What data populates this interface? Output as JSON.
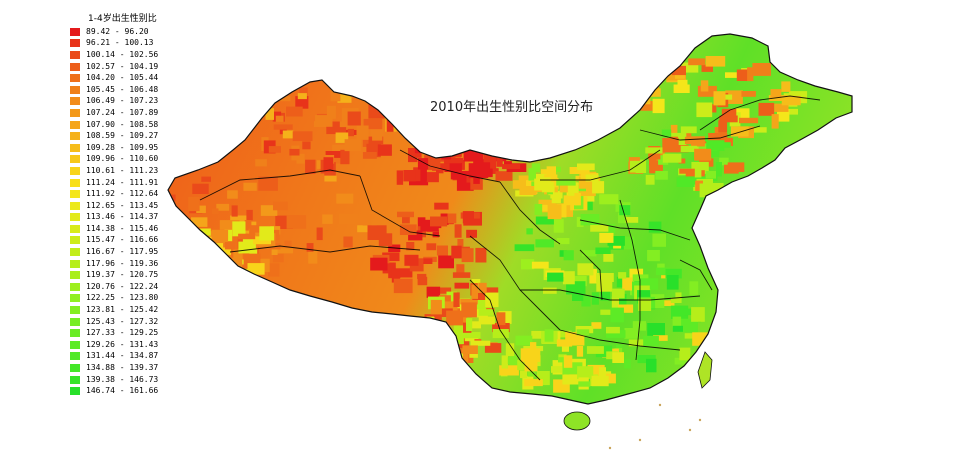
{
  "map": {
    "title": "2010年出生性别比空间分布",
    "legend_title": "1-4岁出生性别比",
    "legend": [
      {
        "label": "89.42 - 96.20",
        "color": "#e41a1c"
      },
      {
        "label": "96.21 - 100.13",
        "color": "#e8331a"
      },
      {
        "label": "100.14 - 102.56",
        "color": "#ea4a1a"
      },
      {
        "label": "102.57 - 104.19",
        "color": "#ed5e1a"
      },
      {
        "label": "104.20 - 105.44",
        "color": "#ef701a"
      },
      {
        "label": "105.45 - 106.48",
        "color": "#f0801a"
      },
      {
        "label": "106.49 - 107.23",
        "color": "#f28c1a"
      },
      {
        "label": "107.24 - 107.89",
        "color": "#f3991a"
      },
      {
        "label": "107.90 - 108.58",
        "color": "#f5a51a"
      },
      {
        "label": "108.59 - 109.27",
        "color": "#f5b11a"
      },
      {
        "label": "109.28 - 109.95",
        "color": "#f6bd1a"
      },
      {
        "label": "109.96 - 110.60",
        "color": "#f7c81a"
      },
      {
        "label": "110.61 - 111.23",
        "color": "#f8d41a"
      },
      {
        "label": "111.24 - 111.91",
        "color": "#f8df1a"
      },
      {
        "label": "111.92 - 112.64",
        "color": "#f4e61a"
      },
      {
        "label": "112.65 - 113.45",
        "color": "#ece91a"
      },
      {
        "label": "113.46 - 114.37",
        "color": "#e2ea1a"
      },
      {
        "label": "114.38 - 115.46",
        "color": "#d8eb1a"
      },
      {
        "label": "115.47 - 116.66",
        "color": "#cdec1a"
      },
      {
        "label": "116.67 - 117.95",
        "color": "#c2ed1a"
      },
      {
        "label": "117.96 - 119.36",
        "color": "#b6ee1a"
      },
      {
        "label": "119.37 - 120.75",
        "color": "#aaee1c"
      },
      {
        "label": "120.76 - 122.24",
        "color": "#9def1e"
      },
      {
        "label": "122.25 - 123.80",
        "color": "#90ef20"
      },
      {
        "label": "123.81 - 125.42",
        "color": "#83ee22"
      },
      {
        "label": "125.43 - 127.32",
        "color": "#76ed24"
      },
      {
        "label": "127.33 - 129.25",
        "color": "#69ec25"
      },
      {
        "label": "129.26 - 131.43",
        "color": "#5deb26"
      },
      {
        "label": "131.44 - 134.87",
        "color": "#50e927"
      },
      {
        "label": "134.88 - 139.37",
        "color": "#43e728"
      },
      {
        "label": "139.38 - 146.73",
        "color": "#36e429"
      },
      {
        "label": "146.74 - 161.66",
        "color": "#28e02a"
      }
    ]
  }
}
